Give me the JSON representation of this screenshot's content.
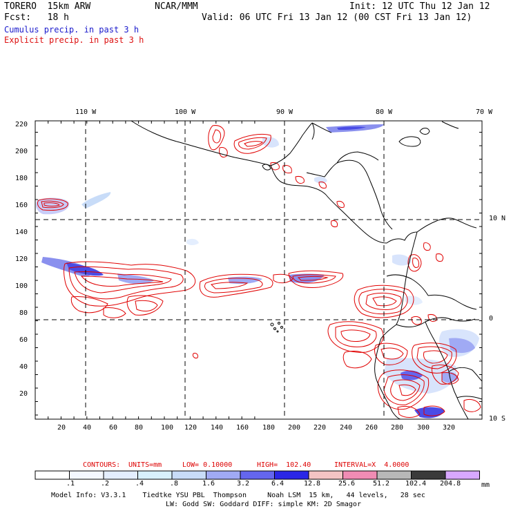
{
  "header": {
    "model_name": "TORERO  15km ARW",
    "center": "NCAR/MMM",
    "init": "Init: 12 UTC Thu 12 Jan 12",
    "fcst": "Fcst:   18 h",
    "valid": "Valid: 06 UTC Fri 13 Jan 12 (00 CST Fri 13 Jan 12)"
  },
  "legend": {
    "cumulus": "Cumulus precip. in past 3 h",
    "explicit": "Explicit precip. in past 3 h",
    "cumulus_color": "#1a1acc",
    "explicit_color": "#dd1111"
  },
  "map": {
    "top_lon_labels": [
      "110 W",
      "100 W",
      "90 W",
      "80 W",
      "70 W"
    ],
    "right_lat_labels": [
      "10 N",
      "0",
      "10 S"
    ],
    "y_ticks": [
      "20",
      "40",
      "60",
      "80",
      "100",
      "120",
      "140",
      "160",
      "180",
      "200",
      "220"
    ],
    "x_ticks": [
      "20",
      "40",
      "60",
      "80",
      "100",
      "120",
      "140",
      "160",
      "180",
      "200",
      "220",
      "240",
      "260",
      "280",
      "300",
      "320"
    ]
  },
  "contours": {
    "label": "CONTOURS:",
    "units": "UNITS=mm",
    "low": "LOW= 0.10000",
    "high": "HIGH=  102.40",
    "interval": "INTERVAL=X  4.0000"
  },
  "colorbar": {
    "labels": [
      ".1",
      ".2",
      ".4",
      ".8",
      "1.6",
      "3.2",
      "6.4",
      "12.8",
      "25.6",
      "51.2",
      "102.4",
      "204.8"
    ],
    "unit": "mm",
    "colors": [
      "#ffffff",
      "#f4f8ff",
      "#e4eefe",
      "#d8f0fc",
      "#c8dcf8",
      "#a0aaf4",
      "#6466ee",
      "#2a26e6",
      "#f4c4c4",
      "#f08cb4",
      "#b8b8b8",
      "#3a3a3a",
      "#d8a8ff"
    ]
  },
  "model_info": {
    "line1": "Model Info: V3.3.1    Tiedtke YSU PBL  Thompson     Noah LSM  15 km,   44 levels,   28 sec",
    "line2": "LW: Godd SW: Goddard DIFF: simple KM: 2D Smagor"
  }
}
